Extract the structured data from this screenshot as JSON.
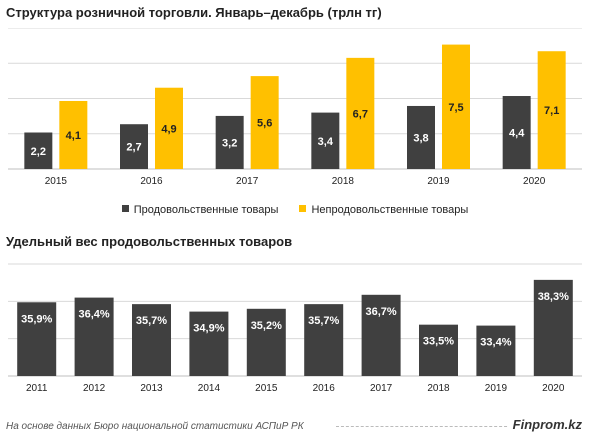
{
  "chart_data": [
    {
      "type": "bar",
      "title": "Структура розничной торговли. Январь–декабрь (трлн тг)",
      "categories": [
        "2015",
        "2016",
        "2017",
        "2018",
        "2019",
        "2020"
      ],
      "series": [
        {
          "name": "Продовольственные товары",
          "values": [
            2.2,
            2.7,
            3.2,
            3.4,
            3.8,
            4.4
          ],
          "labels": [
            "2,2",
            "2,7",
            "3,2",
            "3,4",
            "3,8",
            "4,4"
          ],
          "color": "#404040"
        },
        {
          "name": "Непродовольственные товары",
          "values": [
            4.1,
            4.9,
            5.6,
            6.7,
            7.5,
            7.1
          ],
          "labels": [
            "4,1",
            "4,9",
            "5,6",
            "6,7",
            "7,5",
            "7,1"
          ],
          "color": "#FFC000"
        }
      ],
      "ylim": [
        0,
        8.5
      ],
      "grid": true,
      "legend": "bottom"
    },
    {
      "type": "bar",
      "title": "Удельный вес продовольственных товаров",
      "categories": [
        "2011",
        "2012",
        "2013",
        "2014",
        "2015",
        "2016",
        "2017",
        "2018",
        "2019",
        "2020"
      ],
      "series": [
        {
          "values": [
            35.9,
            36.4,
            35.7,
            34.9,
            35.2,
            35.7,
            36.7,
            33.5,
            33.4,
            38.3
          ],
          "labels": [
            "35,9%",
            "36,4%",
            "35,7%",
            "34,9%",
            "35,2%",
            "35,7%",
            "36,7%",
            "33,5%",
            "33,4%",
            "38,3%"
          ],
          "color": "#404040"
        }
      ],
      "ylim": [
        28,
        40
      ],
      "grid": true
    }
  ],
  "footer": {
    "source": "На основе данных Бюро национальной статистики АСПиР РК",
    "brand": "Finprom.kz"
  }
}
